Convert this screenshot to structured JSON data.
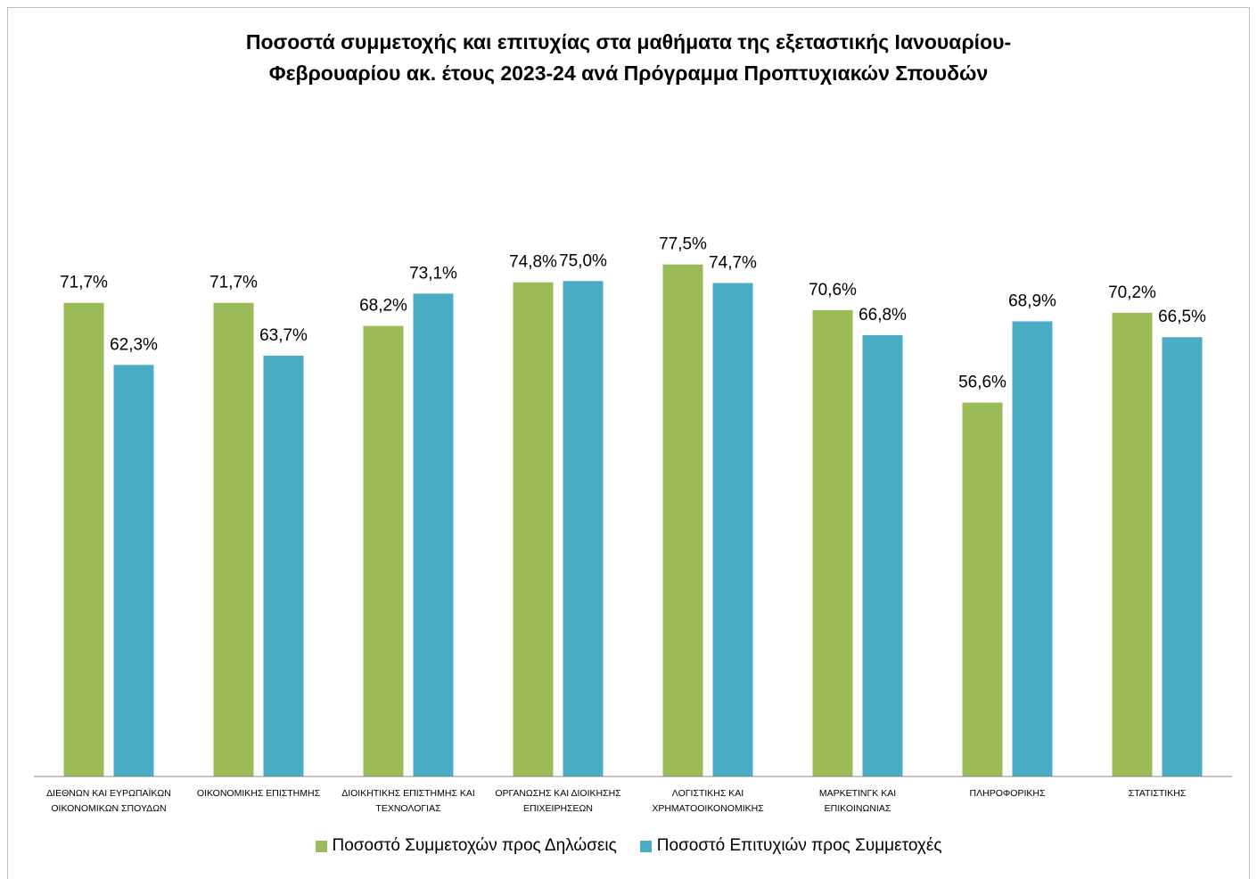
{
  "chart_data": {
    "type": "bar",
    "title_lines": [
      "Ποσοστά συμμετοχής και επιτυχίας στα μαθήματα της εξεταστικής Ιανουαρίου-",
      "Φεβρουαρίου ακ. έτους 2023-24 ανά Πρόγραμμα Προπτυχιακών Σπουδών"
    ],
    "categories": [
      [
        "ΔΙΕΘΝΩΝ ΚΑΙ ΕΥΡΩΠΑΪΚΩΝ",
        "ΟΙΚΟΝΟΜΙΚΩΝ ΣΠΟΥΔΩΝ"
      ],
      [
        "ΟΙΚΟΝΟΜΙΚΗΣ ΕΠΙΣΤΗΜΗΣ"
      ],
      [
        "ΔΙΟΙΚΗΤΙΚΗΣ ΕΠΙΣΤΗΜΗΣ ΚΑΙ",
        "ΤΕΧΝΟΛΟΓΙΑΣ"
      ],
      [
        "ΟΡΓΑΝΩΣΗΣ ΚΑΙ ΔΙΟΙΚΗΣΗΣ",
        "ΕΠΙΧΕΙΡΗΣΕΩΝ"
      ],
      [
        "ΛΟΓΙΣΤΙΚΗΣ ΚΑΙ",
        "ΧΡΗΜΑΤΟΟΙΚΟΝΟΜΙΚΗΣ"
      ],
      [
        "ΜΑΡΚΕΤΙΝΓΚ ΚΑΙ",
        "ΕΠΙΚΟΙΝΩΝΙΑΣ"
      ],
      [
        "ΠΛΗΡΟΦΟΡΙΚΗΣ"
      ],
      [
        "ΣΤΑΤΙΣΤΙΚΗΣ"
      ]
    ],
    "series": [
      {
        "name": "Ποσοστό Συμμετοχών προς Δηλώσεις",
        "color": "#9bbb59",
        "values": [
          71.7,
          71.7,
          68.2,
          74.8,
          77.5,
          70.6,
          56.6,
          70.2
        ],
        "labels": [
          "71,7%",
          "71,7%",
          "68,2%",
          "74,8%",
          "77,5%",
          "70,6%",
          "56,6%",
          "70,2%"
        ]
      },
      {
        "name": "Ποσοστό Επιτυχιών προς Συμμετοχές",
        "color": "#4bacc6",
        "values": [
          62.3,
          63.7,
          73.1,
          75.0,
          74.7,
          66.8,
          68.9,
          66.5
        ],
        "labels": [
          "62,3%",
          "63,7%",
          "73,1%",
          "75,0%",
          "74,7%",
          "66,8%",
          "68,9%",
          "66,5%"
        ]
      }
    ],
    "ylim": [
      0,
      100
    ],
    "grid": false,
    "legend_position": "bottom"
  }
}
